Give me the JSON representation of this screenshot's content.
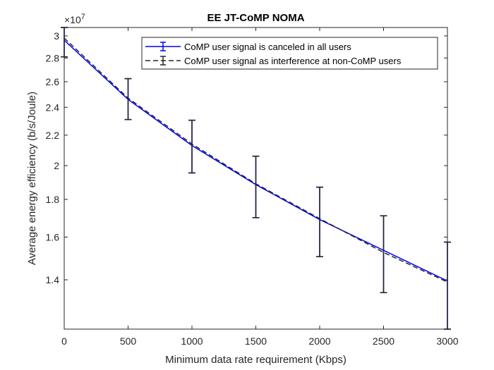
{
  "chart_data": {
    "type": "line",
    "title": "EE JT-CoMP NOMA",
    "xlabel": "Minimum data rate requirement (Kbps)",
    "ylabel": "Average energy efficiency (b/s/Joule)",
    "y_multiplier_base": "×10",
    "y_multiplier_exp": "7",
    "xlim": [
      0,
      3000
    ],
    "ylim": [
      1.2,
      3.08
    ],
    "y_scale": "log",
    "x_ticks": [
      0,
      500,
      1000,
      1500,
      2000,
      2500,
      3000
    ],
    "x_tick_labels": [
      "0",
      "500",
      "1000",
      "1500",
      "2000",
      "2500",
      "3000"
    ],
    "y_ticks": [
      1.4,
      1.6,
      1.8,
      2.0,
      2.2,
      2.4,
      2.6,
      2.8,
      3.0
    ],
    "y_tick_labels": [
      "1.4",
      "1.6",
      "1.8",
      "2",
      "2.2",
      "2.4",
      "2.6",
      "2.8",
      "3"
    ],
    "grid": false,
    "legend_position": "top-right",
    "x": [
      0,
      500,
      1000,
      1500,
      2000,
      2500,
      3000
    ],
    "series": [
      {
        "name": "CoMP user signal is canceled in all users",
        "color": "#0000ff",
        "line_style": "solid",
        "values": [
          2.96,
          2.46,
          2.13,
          1.885,
          1.69,
          1.535,
          1.395
        ],
        "error_low": [
          2.81,
          2.31,
          1.955,
          1.7,
          1.505,
          1.345,
          1.2
        ],
        "error_high": [
          3.08,
          2.625,
          2.305,
          2.06,
          1.87,
          1.71,
          1.575
        ]
      },
      {
        "name": "CoMP user signal as interference at non-CoMP users",
        "color": "#262626",
        "line_style": "dashed",
        "values": [
          2.98,
          2.47,
          2.14,
          1.89,
          1.695,
          1.525,
          1.39
        ],
        "error_low": [
          2.81,
          2.31,
          1.955,
          1.7,
          1.505,
          1.345,
          1.2
        ],
        "error_high": [
          3.08,
          2.625,
          2.305,
          2.06,
          1.87,
          1.71,
          1.575
        ]
      }
    ]
  }
}
